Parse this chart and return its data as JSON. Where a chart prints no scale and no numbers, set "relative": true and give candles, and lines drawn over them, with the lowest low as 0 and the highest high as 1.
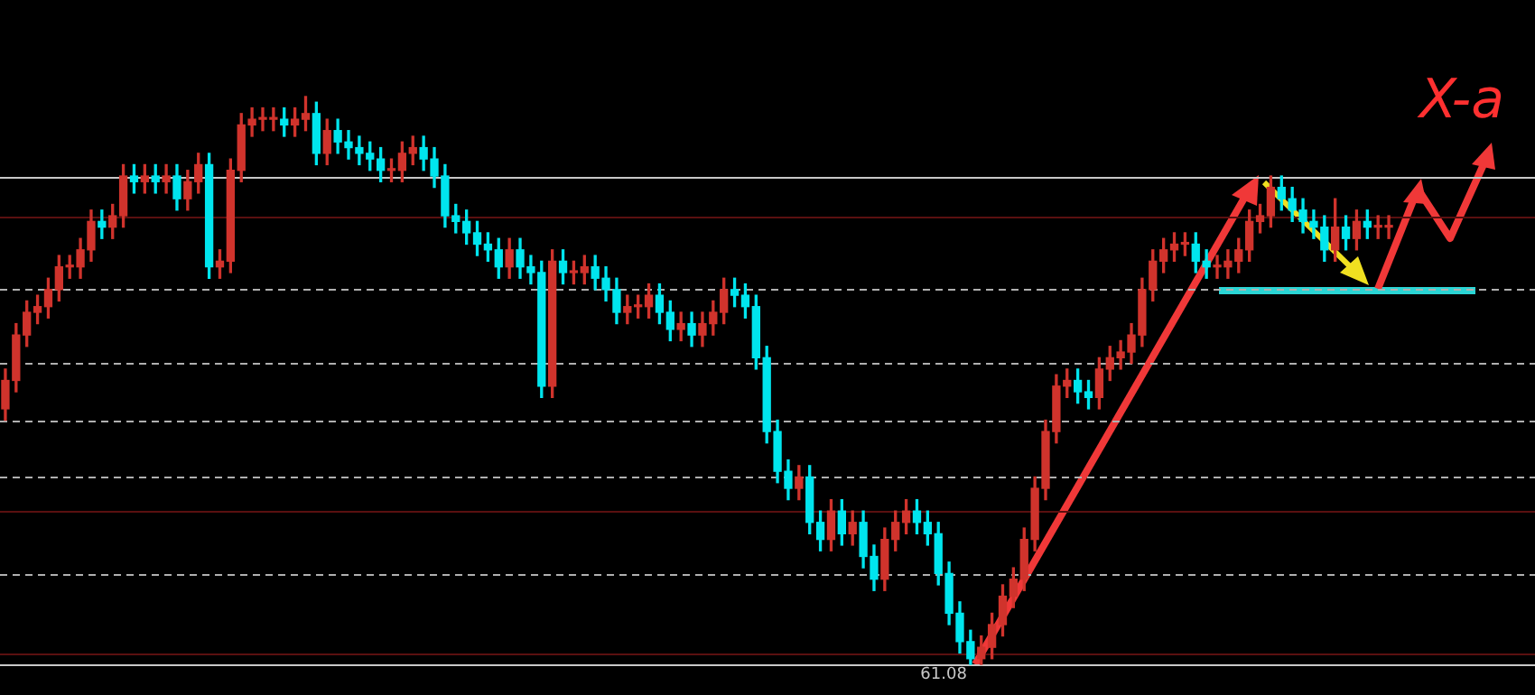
{
  "chart_data": {
    "type": "candlestick",
    "relative": true,
    "legend": false,
    "categories": [
      null,
      null,
      null,
      null,
      null,
      null,
      null,
      null,
      null,
      null,
      null,
      null,
      null,
      null,
      null,
      null,
      null,
      null,
      null,
      null,
      null,
      null,
      null,
      null,
      null,
      null,
      null,
      null,
      null,
      null,
      null,
      null,
      null,
      null,
      null,
      null,
      null,
      null,
      null,
      null,
      null,
      null,
      null,
      null,
      null,
      null,
      null,
      null,
      null,
      null,
      null,
      null,
      null,
      null,
      null,
      null,
      null,
      null,
      null,
      null,
      null,
      null,
      null,
      null,
      null,
      null,
      null,
      null,
      null,
      null,
      null,
      null,
      null,
      null,
      null,
      null,
      null,
      null,
      null,
      null,
      null,
      null,
      null,
      null,
      null,
      null,
      null,
      null,
      null,
      null,
      null,
      null,
      null,
      null,
      null,
      null,
      null,
      null,
      null,
      null,
      null,
      null,
      null,
      null,
      null,
      null,
      null,
      null,
      null,
      null,
      null,
      null,
      null,
      null,
      null,
      null,
      null,
      null,
      null,
      null,
      null,
      null,
      null,
      null,
      null,
      null,
      null,
      null,
      null,
      null
    ],
    "ohlc": [
      [
        0.45,
        0.52,
        0.43,
        0.5
      ],
      [
        0.5,
        0.6,
        0.48,
        0.58
      ],
      [
        0.58,
        0.64,
        0.56,
        0.62
      ],
      [
        0.62,
        0.65,
        0.6,
        0.63
      ],
      [
        0.63,
        0.68,
        0.61,
        0.66
      ],
      [
        0.66,
        0.72,
        0.64,
        0.7
      ],
      [
        0.7,
        0.72,
        0.68,
        0.7
      ],
      [
        0.7,
        0.75,
        0.68,
        0.73
      ],
      [
        0.73,
        0.8,
        0.71,
        0.78
      ],
      [
        0.78,
        0.8,
        0.75,
        0.77
      ],
      [
        0.77,
        0.81,
        0.75,
        0.79
      ],
      [
        0.79,
        0.88,
        0.77,
        0.86
      ],
      [
        0.86,
        0.88,
        0.83,
        0.85
      ],
      [
        0.85,
        0.88,
        0.83,
        0.86
      ],
      [
        0.86,
        0.88,
        0.83,
        0.85
      ],
      [
        0.85,
        0.88,
        0.83,
        0.86
      ],
      [
        0.86,
        0.88,
        0.8,
        0.82
      ],
      [
        0.82,
        0.87,
        0.8,
        0.85
      ],
      [
        0.85,
        0.9,
        0.83,
        0.88
      ],
      [
        0.88,
        0.9,
        0.68,
        0.7
      ],
      [
        0.7,
        0.73,
        0.68,
        0.71
      ],
      [
        0.71,
        0.89,
        0.69,
        0.87
      ],
      [
        0.87,
        0.97,
        0.85,
        0.95
      ],
      [
        0.95,
        0.98,
        0.93,
        0.96
      ],
      [
        0.96,
        0.98,
        0.94,
        0.96
      ],
      [
        0.96,
        0.98,
        0.94,
        0.96
      ],
      [
        0.96,
        0.98,
        0.93,
        0.95
      ],
      [
        0.95,
        0.98,
        0.93,
        0.96
      ],
      [
        0.96,
        1.0,
        0.94,
        0.97
      ],
      [
        0.97,
        0.99,
        0.88,
        0.9
      ],
      [
        0.9,
        0.96,
        0.88,
        0.94
      ],
      [
        0.94,
        0.96,
        0.9,
        0.92
      ],
      [
        0.92,
        0.94,
        0.89,
        0.91
      ],
      [
        0.91,
        0.93,
        0.88,
        0.9
      ],
      [
        0.9,
        0.92,
        0.87,
        0.89
      ],
      [
        0.89,
        0.91,
        0.85,
        0.87
      ],
      [
        0.87,
        0.89,
        0.85,
        0.87
      ],
      [
        0.87,
        0.92,
        0.85,
        0.9
      ],
      [
        0.9,
        0.93,
        0.88,
        0.91
      ],
      [
        0.91,
        0.93,
        0.87,
        0.89
      ],
      [
        0.89,
        0.91,
        0.84,
        0.86
      ],
      [
        0.86,
        0.88,
        0.77,
        0.79
      ],
      [
        0.79,
        0.81,
        0.76,
        0.78
      ],
      [
        0.78,
        0.8,
        0.74,
        0.76
      ],
      [
        0.76,
        0.78,
        0.72,
        0.74
      ],
      [
        0.74,
        0.76,
        0.71,
        0.73
      ],
      [
        0.73,
        0.75,
        0.68,
        0.7
      ],
      [
        0.7,
        0.75,
        0.68,
        0.73
      ],
      [
        0.73,
        0.75,
        0.68,
        0.7
      ],
      [
        0.7,
        0.72,
        0.67,
        0.69
      ],
      [
        0.69,
        0.71,
        0.47,
        0.49
      ],
      [
        0.49,
        0.73,
        0.47,
        0.71
      ],
      [
        0.71,
        0.73,
        0.67,
        0.69
      ],
      [
        0.69,
        0.71,
        0.67,
        0.69
      ],
      [
        0.69,
        0.72,
        0.67,
        0.7
      ],
      [
        0.7,
        0.72,
        0.66,
        0.68
      ],
      [
        0.68,
        0.7,
        0.64,
        0.66
      ],
      [
        0.66,
        0.68,
        0.6,
        0.62
      ],
      [
        0.62,
        0.65,
        0.6,
        0.63
      ],
      [
        0.63,
        0.65,
        0.61,
        0.63
      ],
      [
        0.63,
        0.67,
        0.61,
        0.65
      ],
      [
        0.65,
        0.67,
        0.6,
        0.62
      ],
      [
        0.62,
        0.64,
        0.57,
        0.59
      ],
      [
        0.59,
        0.62,
        0.57,
        0.6
      ],
      [
        0.6,
        0.62,
        0.56,
        0.58
      ],
      [
        0.58,
        0.62,
        0.56,
        0.6
      ],
      [
        0.6,
        0.64,
        0.58,
        0.62
      ],
      [
        0.62,
        0.68,
        0.6,
        0.66
      ],
      [
        0.66,
        0.68,
        0.63,
        0.65
      ],
      [
        0.65,
        0.67,
        0.61,
        0.63
      ],
      [
        0.63,
        0.65,
        0.52,
        0.54
      ],
      [
        0.54,
        0.56,
        0.39,
        0.41
      ],
      [
        0.41,
        0.43,
        0.32,
        0.34
      ],
      [
        0.34,
        0.36,
        0.29,
        0.31
      ],
      [
        0.31,
        0.35,
        0.29,
        0.33
      ],
      [
        0.33,
        0.35,
        0.23,
        0.25
      ],
      [
        0.25,
        0.27,
        0.2,
        0.22
      ],
      [
        0.22,
        0.29,
        0.2,
        0.27
      ],
      [
        0.27,
        0.29,
        0.21,
        0.23
      ],
      [
        0.23,
        0.27,
        0.21,
        0.25
      ],
      [
        0.25,
        0.27,
        0.17,
        0.19
      ],
      [
        0.19,
        0.21,
        0.13,
        0.15
      ],
      [
        0.15,
        0.24,
        0.13,
        0.22
      ],
      [
        0.22,
        0.27,
        0.2,
        0.25
      ],
      [
        0.25,
        0.29,
        0.23,
        0.27
      ],
      [
        0.27,
        0.29,
        0.23,
        0.25
      ],
      [
        0.25,
        0.27,
        0.21,
        0.23
      ],
      [
        0.23,
        0.25,
        0.14,
        0.16
      ],
      [
        0.16,
        0.18,
        0.07,
        0.09
      ],
      [
        0.09,
        0.11,
        0.02,
        0.04
      ],
      [
        0.04,
        0.06,
        0.0,
        0.01
      ],
      [
        0.01,
        0.05,
        0.0,
        0.03
      ],
      [
        0.03,
        0.09,
        0.01,
        0.07
      ],
      [
        0.07,
        0.14,
        0.05,
        0.12
      ],
      [
        0.12,
        0.17,
        0.1,
        0.15
      ],
      [
        0.15,
        0.24,
        0.13,
        0.22
      ],
      [
        0.22,
        0.33,
        0.2,
        0.31
      ],
      [
        0.31,
        0.43,
        0.29,
        0.41
      ],
      [
        0.41,
        0.51,
        0.39,
        0.49
      ],
      [
        0.49,
        0.52,
        0.47,
        0.5
      ],
      [
        0.5,
        0.52,
        0.46,
        0.48
      ],
      [
        0.48,
        0.5,
        0.45,
        0.47
      ],
      [
        0.47,
        0.54,
        0.45,
        0.52
      ],
      [
        0.52,
        0.56,
        0.5,
        0.54
      ],
      [
        0.54,
        0.57,
        0.52,
        0.55
      ],
      [
        0.55,
        0.6,
        0.53,
        0.58
      ],
      [
        0.58,
        0.68,
        0.56,
        0.66
      ],
      [
        0.66,
        0.73,
        0.64,
        0.71
      ],
      [
        0.71,
        0.75,
        0.69,
        0.73
      ],
      [
        0.73,
        0.76,
        0.71,
        0.74
      ],
      [
        0.74,
        0.76,
        0.72,
        0.74
      ],
      [
        0.74,
        0.76,
        0.69,
        0.71
      ],
      [
        0.71,
        0.73,
        0.68,
        0.7
      ],
      [
        0.7,
        0.72,
        0.68,
        0.7
      ],
      [
        0.7,
        0.73,
        0.68,
        0.71
      ],
      [
        0.71,
        0.75,
        0.69,
        0.73
      ],
      [
        0.73,
        0.8,
        0.71,
        0.78
      ],
      [
        0.78,
        0.81,
        0.76,
        0.79
      ],
      [
        0.79,
        0.86,
        0.77,
        0.84
      ],
      [
        0.84,
        0.86,
        0.8,
        0.82
      ],
      [
        0.82,
        0.84,
        0.78,
        0.8
      ],
      [
        0.8,
        0.82,
        0.76,
        0.78
      ],
      [
        0.78,
        0.8,
        0.75,
        0.77
      ],
      [
        0.77,
        0.79,
        0.71,
        0.73
      ],
      [
        0.73,
        0.82,
        0.71,
        0.77
      ],
      [
        0.77,
        0.79,
        0.73,
        0.75
      ],
      [
        0.75,
        0.8,
        0.73,
        0.78
      ],
      [
        0.78,
        0.8,
        0.75,
        0.77
      ],
      [
        0.77,
        0.79,
        0.75,
        0.77
      ],
      [
        0.77,
        0.79,
        0.75,
        0.77
      ]
    ],
    "colors": [
      "#d0332c",
      "#d0332c",
      "#d0332c",
      "#d0332c",
      "#d0332c",
      "#d0332c",
      "#d0332c",
      "#d0332c",
      "#d0332c",
      "#00e5ee",
      "#d0332c",
      "#d0332c",
      "#00e5ee",
      "#d0332c",
      "#00e5ee",
      "#d0332c",
      "#00e5ee",
      "#d0332c",
      "#d0332c",
      "#00e5ee",
      "#d0332c",
      "#d0332c",
      "#d0332c",
      "#d0332c",
      "#d0332c",
      "#d0332c",
      "#00e5ee",
      "#d0332c",
      "#d0332c",
      "#00e5ee",
      "#d0332c",
      "#00e5ee",
      "#00e5ee",
      "#00e5ee",
      "#00e5ee",
      "#00e5ee",
      "#d0332c",
      "#d0332c",
      "#d0332c",
      "#00e5ee",
      "#00e5ee",
      "#00e5ee",
      "#00e5ee",
      "#00e5ee",
      "#00e5ee",
      "#00e5ee",
      "#00e5ee",
      "#d0332c",
      "#00e5ee",
      "#00e5ee",
      "#00e5ee",
      "#d0332c",
      "#00e5ee",
      "#d0332c",
      "#d0332c",
      "#00e5ee",
      "#00e5ee",
      "#00e5ee",
      "#d0332c",
      "#d0332c",
      "#d0332c",
      "#00e5ee",
      "#00e5ee",
      "#d0332c",
      "#00e5ee",
      "#d0332c",
      "#d0332c",
      "#d0332c",
      "#00e5ee",
      "#00e5ee",
      "#00e5ee",
      "#00e5ee",
      "#00e5ee",
      "#00e5ee",
      "#d0332c",
      "#00e5ee",
      "#00e5ee",
      "#d0332c",
      "#00e5ee",
      "#d0332c",
      "#00e5ee",
      "#00e5ee",
      "#d0332c",
      "#d0332c",
      "#d0332c",
      "#00e5ee",
      "#00e5ee",
      "#00e5ee",
      "#00e5ee",
      "#00e5ee",
      "#00e5ee",
      "#d0332c",
      "#d0332c",
      "#d0332c",
      "#d0332c",
      "#d0332c",
      "#d0332c",
      "#d0332c",
      "#d0332c",
      "#d0332c",
      "#00e5ee",
      "#00e5ee",
      "#d0332c",
      "#d0332c",
      "#d0332c",
      "#d0332c",
      "#d0332c",
      "#d0332c",
      "#d0332c",
      "#d0332c",
      "#d0332c",
      "#00e5ee",
      "#00e5ee",
      "#d0332c",
      "#d0332c",
      "#d0332c",
      "#d0332c",
      "#d0332c",
      "#d0332c",
      "#00e5ee",
      "#00e5ee",
      "#00e5ee",
      "#00e5ee",
      "#00e5ee",
      "#d0332c",
      "#00e5ee",
      "#d0332c",
      "#00e5ee",
      "#d0332c",
      "#d0332c"
    ],
    "ref_lines": [
      {
        "axis": "y",
        "value": 0.86,
        "color": "#c8c8c8",
        "line_style": "solid"
      },
      {
        "axis": "y",
        "value": 0,
        "color": "#c8c8c8",
        "line_style": "solid"
      },
      {
        "axis": "y",
        "value": 0.79,
        "color": "#5a1010",
        "line_style": "solid"
      },
      {
        "axis": "y",
        "value": 0.27,
        "color": "#5a1010",
        "line_style": "solid"
      },
      {
        "axis": "y",
        "value": 0.02,
        "color": "#5a1010",
        "line_style": "solid"
      },
      {
        "axis": "y",
        "value": 0.66,
        "color": "#b0b0b0",
        "line_style": "dashed"
      },
      {
        "axis": "y",
        "value": 0.53,
        "color": "#b0b0b0",
        "line_style": "dashed"
      },
      {
        "axis": "y",
        "value": 0.43,
        "color": "#b0b0b0",
        "line_style": "dashed"
      },
      {
        "axis": "y",
        "value": 0.33,
        "color": "#b0b0b0",
        "line_style": "dashed"
      },
      {
        "axis": "y",
        "value": 0.16,
        "color": "#b0b0b0",
        "line_style": "dashed"
      }
    ],
    "annotations": [
      {
        "text": "61.08",
        "y": 0
      },
      "X-a"
    ]
  }
}
